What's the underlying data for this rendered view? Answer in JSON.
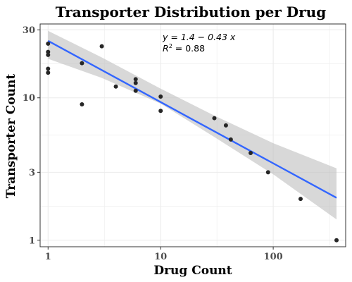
{
  "chart_data": {
    "type": "scatter",
    "title": "Transporter Distribution per Drug",
    "xlabel": "Drug Count",
    "ylabel": "Transporter Count",
    "x_scale": "log10",
    "y_scale": "log10",
    "xlim": [
      0.85,
      440
    ],
    "ylim": [
      0.9,
      33
    ],
    "x_ticks": [
      1,
      10,
      100
    ],
    "x_tick_labels": [
      "1",
      "10",
      "100"
    ],
    "y_ticks": [
      1,
      3,
      10,
      30
    ],
    "y_tick_labels": [
      "1",
      "3",
      "10",
      "30"
    ],
    "grid": true,
    "legend": "none",
    "points": [
      {
        "x": 1,
        "y": 24
      },
      {
        "x": 1,
        "y": 21
      },
      {
        "x": 1,
        "y": 20
      },
      {
        "x": 1,
        "y": 16
      },
      {
        "x": 1,
        "y": 15
      },
      {
        "x": 2,
        "y": 17.5
      },
      {
        "x": 2,
        "y": 9
      },
      {
        "x": 3,
        "y": 23
      },
      {
        "x": 4,
        "y": 12
      },
      {
        "x": 6,
        "y": 13.5
      },
      {
        "x": 6,
        "y": 12.7
      },
      {
        "x": 6,
        "y": 11.2
      },
      {
        "x": 10,
        "y": 10.2
      },
      {
        "x": 10,
        "y": 8.1
      },
      {
        "x": 30,
        "y": 7.2
      },
      {
        "x": 38,
        "y": 6.4
      },
      {
        "x": 42,
        "y": 5.1
      },
      {
        "x": 63,
        "y": 4.1
      },
      {
        "x": 90,
        "y": 3.0
      },
      {
        "x": 175,
        "y": 1.95
      },
      {
        "x": 365,
        "y": 1.0
      }
    ],
    "fit": {
      "type": "linear on log10 scales",
      "intercept": 1.4,
      "slope": -0.43,
      "r_squared": 0.88,
      "line_color": "#3366ff",
      "ribbon_color": "#bebebe",
      "confidence_band": [
        {
          "x": 1,
          "lo": 18.8,
          "hi": 29.5
        },
        {
          "x": 3,
          "lo": 13.8,
          "hi": 19.2
        },
        {
          "x": 10,
          "lo": 9.1,
          "hi": 11.6
        },
        {
          "x": 30,
          "lo": 5.3,
          "hi": 7.5
        },
        {
          "x": 100,
          "lo": 2.9,
          "hi": 4.8
        },
        {
          "x": 365,
          "lo": 1.4,
          "hi": 3.2
        }
      ]
    },
    "equation_text": "y = 1.4 − 0.43 x",
    "r2_label_prefix": "R",
    "r2_label_sup": "2",
    "r2_label_value": " = 0.88",
    "point_color": "#262626",
    "panel_border_color": "#333333",
    "grid_color": "#ebebeb"
  }
}
